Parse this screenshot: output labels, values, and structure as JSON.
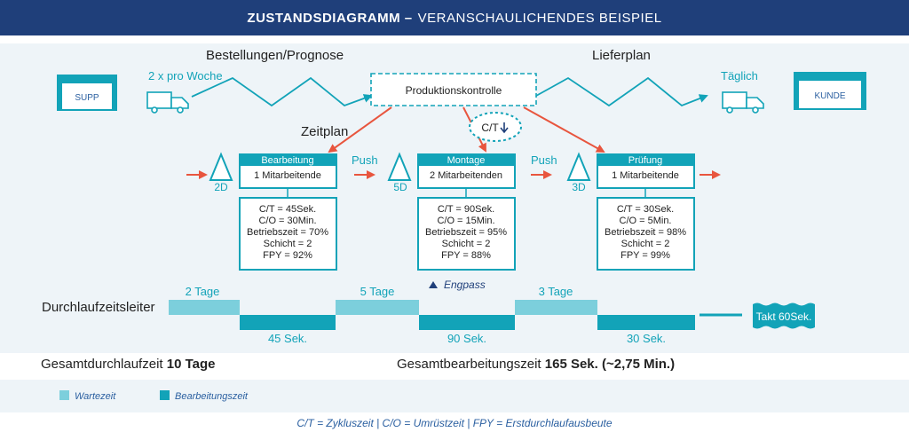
{
  "header": {
    "title_bold": "ZUSTANDSDIAGRAMM –",
    "title_rest": "VERANSCHAULICHENDES BEISPIEL"
  },
  "top": {
    "orders_label": "Bestellungen/Prognose",
    "delivery_label": "Lieferplan",
    "supplier": "SUPP",
    "customer": "KUNDE",
    "supplier_freq": "2 x pro Woche",
    "customer_freq": "Täglich",
    "control": "Produktionskontrolle",
    "schedule": "Zeitplan",
    "ct_kaizen": "C/T"
  },
  "flow": {
    "push1": "Push",
    "push2": "Push",
    "inv1": "2D",
    "inv2": "5D",
    "inv3": "3D"
  },
  "processes": [
    {
      "name": "Bearbeitung",
      "staff": "1 Mitarbeitende",
      "data": [
        "C/T = 45Sek.",
        "C/O = 30Min.",
        "Betriebszeit = 70%",
        "Schicht = 2",
        "FPY = 92%"
      ]
    },
    {
      "name": "Montage",
      "staff": "2 Mitarbeitenden",
      "data": [
        "C/T = 90Sek.",
        "C/O = 15Min.",
        "Betriebszeit = 95%",
        "Schicht = 2",
        "FPY = 88%"
      ]
    },
    {
      "name": "Prüfung",
      "staff": "1 Mitarbeitende",
      "data": [
        "C/T = 30Sek.",
        "C/O = 5Min.",
        "Betriebszeit = 98%",
        "Schicht = 2",
        "FPY = 99%"
      ]
    }
  ],
  "bottleneck": "Engpass",
  "ladder": {
    "label": "Durchlaufzeitsleiter",
    "wait": [
      "2 Tage",
      "5 Tage",
      "3 Tage"
    ],
    "process": [
      "45 Sek.",
      "90 Sek.",
      "30 Sek."
    ],
    "takt": "Takt 60Sek."
  },
  "totals": {
    "lead_label": "Gesamtdurchlaufzeit",
    "lead_value": "10 Tage",
    "proc_label": "Gesamtbearbeitungszeit",
    "proc_value": "165 Sek. (~2,75 Min.)"
  },
  "legend": {
    "wait": "Wartezeit",
    "process": "Bearbeitungszeit"
  },
  "footer": "C/T = Zykluszeit | C/O = Umrüstzeit | FPY = Erstdurchlaufausbeute",
  "colors": {
    "header": "#1f3f7a",
    "teal": "#12a3b8",
    "light_teal": "#7ccfdc",
    "arrow_red": "#e8553e",
    "navy": "#1f3f7a"
  }
}
